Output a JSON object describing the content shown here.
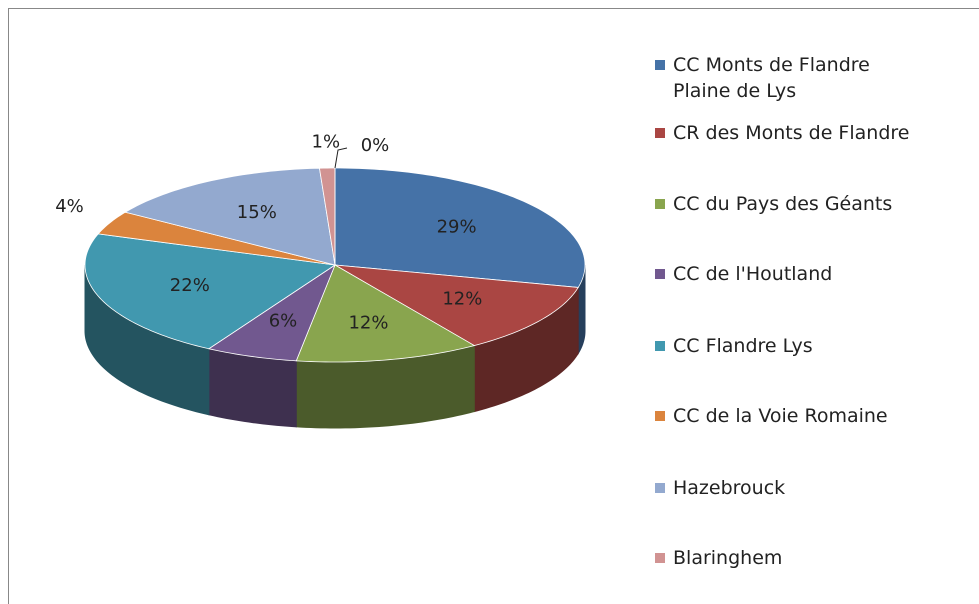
{
  "chart_data": {
    "type": "pie",
    "categories": [
      "CC Monts de Flandre Plaine de Lys",
      "CR des Monts de Flandre",
      "CC du Pays des Géants",
      "CC de l'Houtland",
      "CC Flandre Lys",
      "CC de la Voie Romaine",
      "Hazebrouck",
      "Blaringhem",
      null
    ],
    "values": [
      29,
      12,
      12,
      6,
      22,
      4,
      15,
      1,
      0
    ],
    "value_labels": [
      "29%",
      "12%",
      "12%",
      "6%",
      "22%",
      "4%",
      "15%",
      "1%",
      "0%"
    ],
    "colors": [
      "#4572A7",
      "#AA4643",
      "#89A54E",
      "#71588F",
      "#4198AF",
      "#DB843D",
      "#93A9CF",
      "#D19392",
      "#B9CD96"
    ],
    "legend": "right"
  }
}
